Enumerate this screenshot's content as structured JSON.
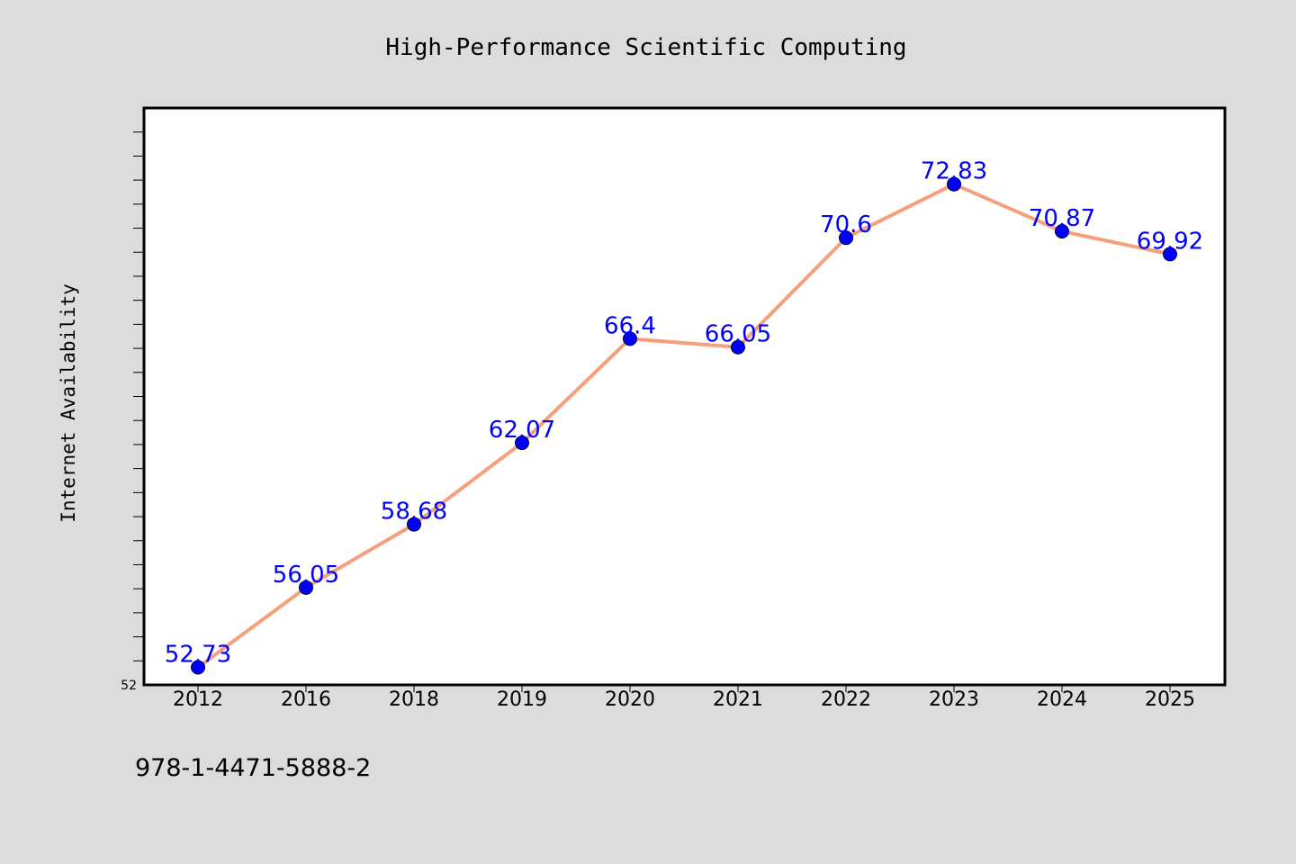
{
  "footer_code": "978-1-4471-5888-2",
  "colors": {
    "background": "#dcdcdc",
    "plot_background": "#ffffff",
    "line": "#f4a07c",
    "marker": "#0000ff",
    "data_label": "#0000ff"
  },
  "chart_data": {
    "type": "line",
    "title": "High-Performance Scientific Computing",
    "xlabel": "",
    "ylabel": "Internet Availability",
    "categories": [
      "2012",
      "2016",
      "2018",
      "2019",
      "2020",
      "2021",
      "2022",
      "2023",
      "2024",
      "2025"
    ],
    "series": [
      {
        "values": [
          52.73,
          56.05,
          58.68,
          62.07,
          66.4,
          66.05,
          70.6,
          72.83,
          70.87,
          69.92
        ],
        "data_labels": [
          "52.73",
          "56.05",
          "58.68",
          "62.07",
          "66.4",
          "66.05",
          "70.6",
          "72.83",
          "70.87",
          "69.92"
        ]
      }
    ],
    "ylim": [
      52.0,
      76.0
    ],
    "y_tick_labels": [
      "52"
    ],
    "grid": false,
    "legend": "none"
  }
}
